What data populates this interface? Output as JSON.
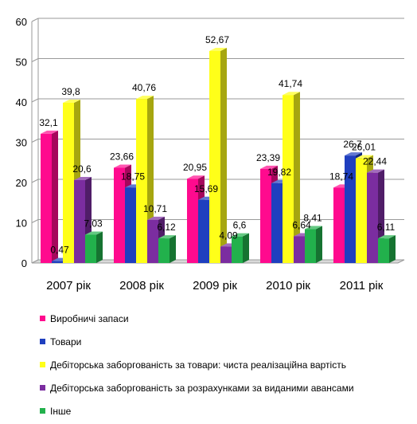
{
  "chart_data": {
    "type": "bar",
    "title": "",
    "xlabel": "",
    "ylabel": "",
    "ylim": [
      0,
      60
    ],
    "yticks": [
      0,
      10,
      20,
      30,
      40,
      50,
      60
    ],
    "grid": true,
    "legend_position": "bottom",
    "categories": [
      "2007 рік",
      "2008 рік",
      "2009 рік",
      "2010 рік",
      "2011 рік"
    ],
    "series": [
      {
        "name": "Виробничі запаси",
        "color": "#ff0a8e",
        "values": [
          32.1,
          23.66,
          20.95,
          23.39,
          18.74
        ],
        "labels": [
          "32,1",
          "23,66",
          "20,95",
          "23,39",
          "18,74"
        ]
      },
      {
        "name": "Товари",
        "color": "#1f3fbf",
        "values": [
          0.47,
          18.75,
          15.69,
          19.82,
          26.7
        ],
        "labels": [
          "0,47",
          "18,75",
          "15,69",
          "19,82",
          "26,7"
        ]
      },
      {
        "name": "Дебіторська заборгованість за товари: чиста реалізаційна вартість",
        "color": "#ffff19",
        "values": [
          39.8,
          40.76,
          52.67,
          41.74,
          26.01
        ],
        "labels": [
          "39,8",
          "40,76",
          "52,67",
          "41,74",
          "26,01"
        ]
      },
      {
        "name": "Дебіторська заборгованість за розрахунками за виданими авансами",
        "color": "#7b2da0",
        "values": [
          20.6,
          10.71,
          4.09,
          6.64,
          22.44
        ],
        "labels": [
          "20,6",
          "10,71",
          "4,09",
          "6,64",
          "22,44"
        ]
      },
      {
        "name": "Інше",
        "color": "#22b14c",
        "values": [
          7.03,
          6.12,
          6.6,
          8.41,
          6.11
        ],
        "labels": [
          "7,03",
          "6,12",
          "6,6",
          "8,41",
          "6,11"
        ]
      }
    ]
  }
}
